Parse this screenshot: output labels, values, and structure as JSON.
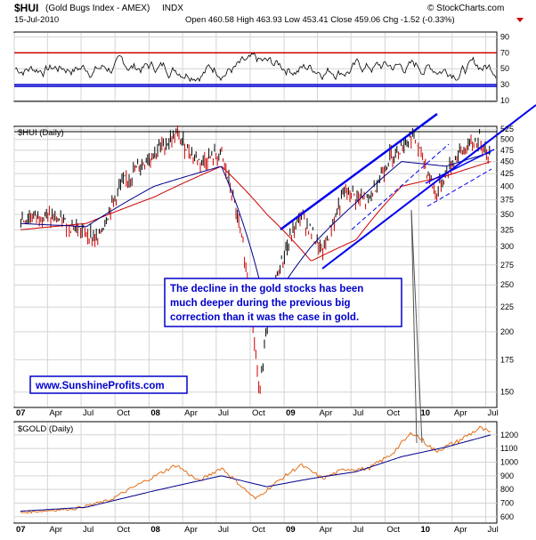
{
  "header": {
    "symbol": "$HUI",
    "name": "(Gold Bugs Index - AMEX)",
    "exchange": "INDX",
    "date": "15-Jul-2010",
    "watermark": "© StockCharts.com",
    "stats": "Open 460.58   High 463.93   Low 453.41   Close 459.06   Chg -1.52 (-0.33%)"
  },
  "chart_data": [
    {
      "type": "line",
      "panel": "RSI",
      "ylim": [
        10,
        95
      ],
      "yticks": [
        10,
        30,
        50,
        70,
        90
      ],
      "reference_lines": [
        70,
        30
      ],
      "approx_range": [
        25,
        80
      ],
      "colors": {
        "rsi": "#000000",
        "upper": "#cc0000",
        "lower": "#0000cc"
      }
    },
    {
      "type": "line",
      "panel": "price",
      "label": "$HUI (Daily)",
      "yscale": "log",
      "ylim": [
        140,
        530
      ],
      "yticks": [
        150,
        175,
        200,
        225,
        250,
        275,
        300,
        325,
        350,
        375,
        400,
        425,
        450,
        475,
        500,
        525
      ],
      "xticks": [
        "07",
        "Apr",
        "Jul",
        "Oct",
        "08",
        "Apr",
        "Jul",
        "Oct",
        "09",
        "Apr",
        "Jul",
        "Oct",
        "10",
        "Apr",
        "Jul"
      ],
      "series": [
        {
          "name": "",
          "color": "#000000",
          "x": [
            "2007-01",
            "2007-03",
            "2007-06",
            "2007-08",
            "2007-10",
            "2008-01",
            "2008-03",
            "2008-05",
            "2008-07",
            "2008-09",
            "2008-10-24",
            "2008-12",
            "2009-02",
            "2009-04",
            "2009-06",
            "2009-08",
            "2009-10",
            "2009-12",
            "2010-02",
            "2010-04",
            "2010-06",
            "2010-07-15"
          ],
          "values": [
            340,
            350,
            330,
            310,
            400,
            470,
            510,
            450,
            465,
            290,
            150,
            265,
            350,
            290,
            390,
            370,
            460,
            510,
            385,
            465,
            500,
            459
          ]
        },
        {
          "name": "",
          "color": "#cc0000",
          "x": [
            "2007-01",
            "2007-07",
            "2008-01",
            "2008-07",
            "2008-11",
            "2009-03",
            "2009-07",
            "2009-11",
            "2010-03",
            "2010-07"
          ],
          "values": [
            325,
            335,
            380,
            440,
            350,
            280,
            310,
            400,
            420,
            450
          ]
        },
        {
          "name": "",
          "color": "#00008b",
          "x": [
            "2007-01",
            "2007-07",
            "2008-01",
            "2008-07",
            "2008-11",
            "2009-03",
            "2009-07",
            "2009-11",
            "2010-03",
            "2010-07"
          ],
          "values": [
            335,
            330,
            400,
            440,
            220,
            300,
            370,
            450,
            440,
            470
          ]
        }
      ],
      "annotation": "The decline in the gold stocks has been much deeper during the previous big correction than it was the case in gold.",
      "source_box": "www.SunshineProfits.com"
    },
    {
      "type": "line",
      "panel": "GOLD",
      "label": "$GOLD (Daily)",
      "ylim": [
        560,
        1290
      ],
      "yticks": [
        600,
        700,
        800,
        900,
        1000,
        1100,
        1200
      ],
      "xticks": [
        "07",
        "Apr",
        "Jul",
        "Oct",
        "08",
        "Apr",
        "Jul",
        "Oct",
        "09",
        "Apr",
        "Jul",
        "Oct",
        "10",
        "Apr",
        "Jul"
      ],
      "series": [
        {
          "name": "",
          "color": "#e06000",
          "x": [
            "2007-01",
            "2007-06",
            "2007-09",
            "2007-11",
            "2008-03",
            "2008-05",
            "2008-07",
            "2008-10",
            "2008-12",
            "2009-02",
            "2009-04",
            "2009-06",
            "2009-08",
            "2009-10",
            "2009-12",
            "2010-02",
            "2010-04",
            "2010-06",
            "2010-07-15"
          ],
          "values": [
            630,
            660,
            720,
            810,
            980,
            860,
            960,
            730,
            860,
            980,
            880,
            950,
            950,
            1050,
            1220,
            1080,
            1150,
            1250,
            1210
          ]
        },
        {
          "name": "",
          "color": "#00008b",
          "x": [
            "2007-01",
            "2007-07",
            "2008-01",
            "2008-07",
            "2008-11",
            "2009-03",
            "2009-07",
            "2009-11",
            "2010-03",
            "2010-07"
          ],
          "values": [
            640,
            670,
            790,
            900,
            820,
            880,
            930,
            1040,
            1110,
            1200
          ]
        }
      ]
    }
  ]
}
